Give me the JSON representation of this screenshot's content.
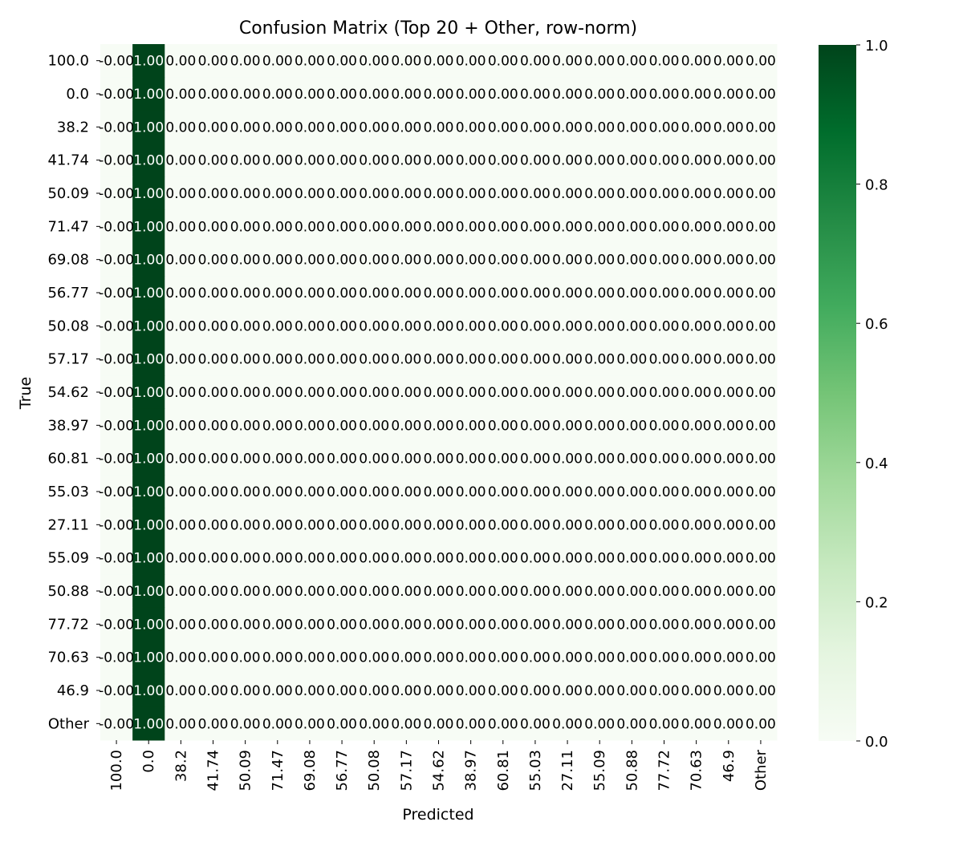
{
  "chart_data": {
    "type": "heatmap",
    "title": "Confusion Matrix (Top 20 + Other, row-norm)",
    "xlabel": "Predicted",
    "ylabel": "True",
    "categories": [
      "100.0",
      "0.0",
      "38.2",
      "41.74",
      "50.09",
      "71.47",
      "69.08",
      "56.77",
      "50.08",
      "57.17",
      "54.62",
      "38.97",
      "60.81",
      "55.03",
      "27.11",
      "55.09",
      "50.88",
      "77.72",
      "70.63",
      "46.9",
      "Other"
    ],
    "x_categories": [
      "100.0",
      "0.0",
      "38.2",
      "41.74",
      "50.09",
      "71.47",
      "69.08",
      "56.77",
      "50.08",
      "57.17",
      "54.62",
      "38.97",
      "60.81",
      "55.03",
      "27.11",
      "55.09",
      "50.88",
      "77.72",
      "70.63",
      "46.9",
      "Other"
    ],
    "y_categories": [
      "100.0",
      "0.0",
      "38.2",
      "41.74",
      "50.09",
      "71.47",
      "69.08",
      "56.77",
      "50.08",
      "57.17",
      "54.62",
      "38.97",
      "60.81",
      "55.03",
      "27.11",
      "55.09",
      "50.88",
      "77.72",
      "70.63",
      "46.9",
      "Other"
    ],
    "values": [
      [
        0,
        1,
        0,
        0,
        0,
        0,
        0,
        0,
        0,
        0,
        0,
        0,
        0,
        0,
        0,
        0,
        0,
        0,
        0,
        0,
        0
      ],
      [
        0,
        1,
        0,
        0,
        0,
        0,
        0,
        0,
        0,
        0,
        0,
        0,
        0,
        0,
        0,
        0,
        0,
        0,
        0,
        0,
        0
      ],
      [
        0,
        1,
        0,
        0,
        0,
        0,
        0,
        0,
        0,
        0,
        0,
        0,
        0,
        0,
        0,
        0,
        0,
        0,
        0,
        0,
        0
      ],
      [
        0,
        1,
        0,
        0,
        0,
        0,
        0,
        0,
        0,
        0,
        0,
        0,
        0,
        0,
        0,
        0,
        0,
        0,
        0,
        0,
        0
      ],
      [
        0,
        1,
        0,
        0,
        0,
        0,
        0,
        0,
        0,
        0,
        0,
        0,
        0,
        0,
        0,
        0,
        0,
        0,
        0,
        0,
        0
      ],
      [
        0,
        1,
        0,
        0,
        0,
        0,
        0,
        0,
        0,
        0,
        0,
        0,
        0,
        0,
        0,
        0,
        0,
        0,
        0,
        0,
        0
      ],
      [
        0,
        1,
        0,
        0,
        0,
        0,
        0,
        0,
        0,
        0,
        0,
        0,
        0,
        0,
        0,
        0,
        0,
        0,
        0,
        0,
        0
      ],
      [
        0,
        1,
        0,
        0,
        0,
        0,
        0,
        0,
        0,
        0,
        0,
        0,
        0,
        0,
        0,
        0,
        0,
        0,
        0,
        0,
        0
      ],
      [
        0,
        1,
        0,
        0,
        0,
        0,
        0,
        0,
        0,
        0,
        0,
        0,
        0,
        0,
        0,
        0,
        0,
        0,
        0,
        0,
        0
      ],
      [
        0,
        1,
        0,
        0,
        0,
        0,
        0,
        0,
        0,
        0,
        0,
        0,
        0,
        0,
        0,
        0,
        0,
        0,
        0,
        0,
        0
      ],
      [
        0,
        1,
        0,
        0,
        0,
        0,
        0,
        0,
        0,
        0,
        0,
        0,
        0,
        0,
        0,
        0,
        0,
        0,
        0,
        0,
        0
      ],
      [
        0,
        1,
        0,
        0,
        0,
        0,
        0,
        0,
        0,
        0,
        0,
        0,
        0,
        0,
        0,
        0,
        0,
        0,
        0,
        0,
        0
      ],
      [
        0,
        1,
        0,
        0,
        0,
        0,
        0,
        0,
        0,
        0,
        0,
        0,
        0,
        0,
        0,
        0,
        0,
        0,
        0,
        0,
        0
      ],
      [
        0,
        1,
        0,
        0,
        0,
        0,
        0,
        0,
        0,
        0,
        0,
        0,
        0,
        0,
        0,
        0,
        0,
        0,
        0,
        0,
        0
      ],
      [
        0,
        1,
        0,
        0,
        0,
        0,
        0,
        0,
        0,
        0,
        0,
        0,
        0,
        0,
        0,
        0,
        0,
        0,
        0,
        0,
        0
      ],
      [
        0,
        1,
        0,
        0,
        0,
        0,
        0,
        0,
        0,
        0,
        0,
        0,
        0,
        0,
        0,
        0,
        0,
        0,
        0,
        0,
        0
      ],
      [
        0,
        1,
        0,
        0,
        0,
        0,
        0,
        0,
        0,
        0,
        0,
        0,
        0,
        0,
        0,
        0,
        0,
        0,
        0,
        0,
        0
      ],
      [
        0,
        1,
        0,
        0,
        0,
        0,
        0,
        0,
        0,
        0,
        0,
        0,
        0,
        0,
        0,
        0,
        0,
        0,
        0,
        0,
        0
      ],
      [
        0,
        1,
        0,
        0,
        0,
        0,
        0,
        0,
        0,
        0,
        0,
        0,
        0,
        0,
        0,
        0,
        0,
        0,
        0,
        0,
        0
      ],
      [
        0,
        1,
        0,
        0,
        0,
        0,
        0,
        0,
        0,
        0,
        0,
        0,
        0,
        0,
        0,
        0,
        0,
        0,
        0,
        0,
        0
      ],
      [
        0,
        1,
        0,
        0,
        0,
        0,
        0,
        0,
        0,
        0,
        0,
        0,
        0,
        0,
        0,
        0,
        0,
        0,
        0,
        0,
        0
      ]
    ],
    "cell_labels": [
      [
        "-0.00",
        "1.00",
        "0.00",
        "0.00",
        "0.00",
        "0.00",
        "0.00",
        "0.00",
        "0.00",
        "0.00",
        "0.00",
        "0.00",
        "0.00",
        "0.00",
        "0.00",
        "0.00",
        "0.00",
        "0.00",
        "0.00",
        "0.00",
        "0.00"
      ],
      [
        "-0.00",
        "1.00",
        "0.00",
        "0.00",
        "0.00",
        "0.00",
        "0.00",
        "0.00",
        "0.00",
        "0.00",
        "0.00",
        "0.00",
        "0.00",
        "0.00",
        "0.00",
        "0.00",
        "0.00",
        "0.00",
        "0.00",
        "0.00",
        "0.00"
      ],
      [
        "-0.00",
        "1.00",
        "0.00",
        "0.00",
        "0.00",
        "0.00",
        "0.00",
        "0.00",
        "0.00",
        "0.00",
        "0.00",
        "0.00",
        "0.00",
        "0.00",
        "0.00",
        "0.00",
        "0.00",
        "0.00",
        "0.00",
        "0.00",
        "0.00"
      ],
      [
        "-0.00",
        "1.00",
        "0.00",
        "0.00",
        "0.00",
        "0.00",
        "0.00",
        "0.00",
        "0.00",
        "0.00",
        "0.00",
        "0.00",
        "0.00",
        "0.00",
        "0.00",
        "0.00",
        "0.00",
        "0.00",
        "0.00",
        "0.00",
        "0.00"
      ],
      [
        "-0.00",
        "1.00",
        "0.00",
        "0.00",
        "0.00",
        "0.00",
        "0.00",
        "0.00",
        "0.00",
        "0.00",
        "0.00",
        "0.00",
        "0.00",
        "0.00",
        "0.00",
        "0.00",
        "0.00",
        "0.00",
        "0.00",
        "0.00",
        "0.00"
      ],
      [
        "-0.00",
        "1.00",
        "0.00",
        "0.00",
        "0.00",
        "0.00",
        "0.00",
        "0.00",
        "0.00",
        "0.00",
        "0.00",
        "0.00",
        "0.00",
        "0.00",
        "0.00",
        "0.00",
        "0.00",
        "0.00",
        "0.00",
        "0.00",
        "0.00"
      ],
      [
        "-0.00",
        "1.00",
        "0.00",
        "0.00",
        "0.00",
        "0.00",
        "0.00",
        "0.00",
        "0.00",
        "0.00",
        "0.00",
        "0.00",
        "0.00",
        "0.00",
        "0.00",
        "0.00",
        "0.00",
        "0.00",
        "0.00",
        "0.00",
        "0.00"
      ],
      [
        "-0.00",
        "1.00",
        "0.00",
        "0.00",
        "0.00",
        "0.00",
        "0.00",
        "0.00",
        "0.00",
        "0.00",
        "0.00",
        "0.00",
        "0.00",
        "0.00",
        "0.00",
        "0.00",
        "0.00",
        "0.00",
        "0.00",
        "0.00",
        "0.00"
      ],
      [
        "-0.00",
        "1.00",
        "0.00",
        "0.00",
        "0.00",
        "0.00",
        "0.00",
        "0.00",
        "0.00",
        "0.00",
        "0.00",
        "0.00",
        "0.00",
        "0.00",
        "0.00",
        "0.00",
        "0.00",
        "0.00",
        "0.00",
        "0.00",
        "0.00"
      ],
      [
        "-0.00",
        "1.00",
        "0.00",
        "0.00",
        "0.00",
        "0.00",
        "0.00",
        "0.00",
        "0.00",
        "0.00",
        "0.00",
        "0.00",
        "0.00",
        "0.00",
        "0.00",
        "0.00",
        "0.00",
        "0.00",
        "0.00",
        "0.00",
        "0.00"
      ],
      [
        "-0.00",
        "1.00",
        "0.00",
        "0.00",
        "0.00",
        "0.00",
        "0.00",
        "0.00",
        "0.00",
        "0.00",
        "0.00",
        "0.00",
        "0.00",
        "0.00",
        "0.00",
        "0.00",
        "0.00",
        "0.00",
        "0.00",
        "0.00",
        "0.00"
      ],
      [
        "-0.00",
        "1.00",
        "0.00",
        "0.00",
        "0.00",
        "0.00",
        "0.00",
        "0.00",
        "0.00",
        "0.00",
        "0.00",
        "0.00",
        "0.00",
        "0.00",
        "0.00",
        "0.00",
        "0.00",
        "0.00",
        "0.00",
        "0.00",
        "0.00"
      ],
      [
        "-0.00",
        "1.00",
        "0.00",
        "0.00",
        "0.00",
        "0.00",
        "0.00",
        "0.00",
        "0.00",
        "0.00",
        "0.00",
        "0.00",
        "0.00",
        "0.00",
        "0.00",
        "0.00",
        "0.00",
        "0.00",
        "0.00",
        "0.00",
        "0.00"
      ],
      [
        "-0.00",
        "1.00",
        "0.00",
        "0.00",
        "0.00",
        "0.00",
        "0.00",
        "0.00",
        "0.00",
        "0.00",
        "0.00",
        "0.00",
        "0.00",
        "0.00",
        "0.00",
        "0.00",
        "0.00",
        "0.00",
        "0.00",
        "0.00",
        "0.00"
      ],
      [
        "-0.00",
        "1.00",
        "0.00",
        "0.00",
        "0.00",
        "0.00",
        "0.00",
        "0.00",
        "0.00",
        "0.00",
        "0.00",
        "0.00",
        "0.00",
        "0.00",
        "0.00",
        "0.00",
        "0.00",
        "0.00",
        "0.00",
        "0.00",
        "0.00"
      ],
      [
        "-0.00",
        "1.00",
        "0.00",
        "0.00",
        "0.00",
        "0.00",
        "0.00",
        "0.00",
        "0.00",
        "0.00",
        "0.00",
        "0.00",
        "0.00",
        "0.00",
        "0.00",
        "0.00",
        "0.00",
        "0.00",
        "0.00",
        "0.00",
        "0.00"
      ],
      [
        "-0.00",
        "1.00",
        "0.00",
        "0.00",
        "0.00",
        "0.00",
        "0.00",
        "0.00",
        "0.00",
        "0.00",
        "0.00",
        "0.00",
        "0.00",
        "0.00",
        "0.00",
        "0.00",
        "0.00",
        "0.00",
        "0.00",
        "0.00",
        "0.00"
      ],
      [
        "-0.00",
        "1.00",
        "0.00",
        "0.00",
        "0.00",
        "0.00",
        "0.00",
        "0.00",
        "0.00",
        "0.00",
        "0.00",
        "0.00",
        "0.00",
        "0.00",
        "0.00",
        "0.00",
        "0.00",
        "0.00",
        "0.00",
        "0.00",
        "0.00"
      ],
      [
        "-0.00",
        "1.00",
        "0.00",
        "0.00",
        "0.00",
        "0.00",
        "0.00",
        "0.00",
        "0.00",
        "0.00",
        "0.00",
        "0.00",
        "0.00",
        "0.00",
        "0.00",
        "0.00",
        "0.00",
        "0.00",
        "0.00",
        "0.00",
        "0.00"
      ],
      [
        "-0.00",
        "1.00",
        "0.00",
        "0.00",
        "0.00",
        "0.00",
        "0.00",
        "0.00",
        "0.00",
        "0.00",
        "0.00",
        "0.00",
        "0.00",
        "0.00",
        "0.00",
        "0.00",
        "0.00",
        "0.00",
        "0.00",
        "0.00",
        "0.00"
      ],
      [
        "-0.00",
        "1.00",
        "0.00",
        "0.00",
        "0.00",
        "0.00",
        "0.00",
        "0.00",
        "0.00",
        "0.00",
        "0.00",
        "0.00",
        "0.00",
        "0.00",
        "0.00",
        "0.00",
        "0.00",
        "0.00",
        "0.00",
        "0.00",
        "0.00"
      ]
    ],
    "colorbar": {
      "range": [
        0.0,
        1.0
      ],
      "ticks": [
        0.0,
        0.2,
        0.4,
        0.6,
        0.8,
        1.0
      ],
      "tick_labels": [
        "0.0",
        "0.2",
        "0.4",
        "0.6",
        "0.8",
        "1.0"
      ],
      "colormap": "Greens",
      "color_low": "#f7fcf5",
      "color_high": "#00441b"
    },
    "grid": false,
    "legend": "colorbar-right"
  }
}
